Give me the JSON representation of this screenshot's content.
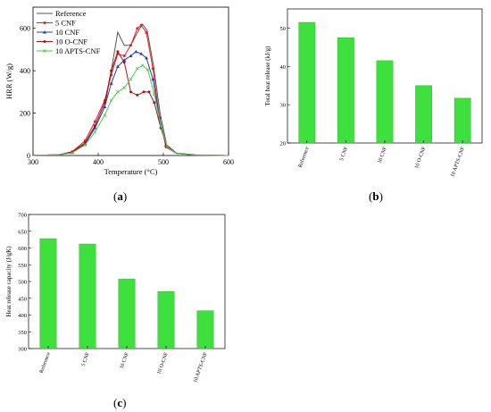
{
  "captions": {
    "a": "a",
    "b": "b",
    "c": "c"
  },
  "chart_data": [
    {
      "id": "a",
      "type": "line",
      "xlabel": "Temperature (°C)",
      "ylabel": "HRR (W/g)",
      "xlim": [
        300,
        600
      ],
      "ylim": [
        0,
        700
      ],
      "xticks": [
        "300",
        "400",
        "500",
        "600"
      ],
      "yticks": [
        "0",
        "200",
        "400",
        "600"
      ],
      "legend_position": "top-left",
      "series": [
        {
          "name": "Reference",
          "color": "#555555",
          "marker": "none",
          "points": [
            [
              300,
              1
            ],
            [
              340,
              3
            ],
            [
              360,
              15
            ],
            [
              380,
              60
            ],
            [
              395,
              130
            ],
            [
              410,
              230
            ],
            [
              420,
              400
            ],
            [
              430,
              582
            ],
            [
              440,
              520
            ],
            [
              450,
              520
            ],
            [
              460,
              580
            ],
            [
              468,
              620
            ],
            [
              475,
              590
            ],
            [
              485,
              420
            ],
            [
              495,
              200
            ],
            [
              505,
              50
            ],
            [
              520,
              12
            ],
            [
              550,
              3
            ],
            [
              600,
              0
            ]
          ]
        },
        {
          "name": "5 CNF",
          "color": "#e8201f",
          "marker": "circle",
          "points": [
            [
              300,
              1
            ],
            [
              340,
              4
            ],
            [
              360,
              18
            ],
            [
              380,
              70
            ],
            [
              395,
              160
            ],
            [
              410,
              260
            ],
            [
              420,
              380
            ],
            [
              430,
              480
            ],
            [
              440,
              470
            ],
            [
              450,
              520
            ],
            [
              460,
              600
            ],
            [
              466,
              615
            ],
            [
              474,
              580
            ],
            [
              484,
              410
            ],
            [
              494,
              180
            ],
            [
              504,
              40
            ],
            [
              520,
              10
            ],
            [
              550,
              2
            ],
            [
              600,
              0
            ]
          ]
        },
        {
          "name": "10 CNF",
          "color": "#2b3aad",
          "marker": "triangle",
          "points": [
            [
              300,
              1
            ],
            [
              340,
              3
            ],
            [
              360,
              15
            ],
            [
              380,
              55
            ],
            [
              395,
              130
            ],
            [
              410,
              230
            ],
            [
              420,
              340
            ],
            [
              430,
              420
            ],
            [
              440,
              450
            ],
            [
              450,
              470
            ],
            [
              458,
              490
            ],
            [
              466,
              480
            ],
            [
              474,
              460
            ],
            [
              484,
              360
            ],
            [
              494,
              180
            ],
            [
              504,
              50
            ],
            [
              520,
              10
            ],
            [
              550,
              2
            ],
            [
              600,
              0
            ]
          ]
        },
        {
          "name": "10 O-CNF",
          "color": "#a0161d",
          "marker": "circle",
          "points": [
            [
              300,
              1
            ],
            [
              340,
              3
            ],
            [
              360,
              16
            ],
            [
              380,
              60
            ],
            [
              395,
              140
            ],
            [
              410,
              250
            ],
            [
              420,
              400
            ],
            [
              430,
              490
            ],
            [
              440,
              440
            ],
            [
              450,
              300
            ],
            [
              460,
              285
            ],
            [
              470,
              300
            ],
            [
              478,
              300
            ],
            [
              486,
              250
            ],
            [
              496,
              130
            ],
            [
              506,
              40
            ],
            [
              520,
              10
            ],
            [
              550,
              2
            ],
            [
              600,
              0
            ]
          ]
        },
        {
          "name": "10 APTS-CNF",
          "color": "#4fc84a",
          "marker": "x",
          "points": [
            [
              300,
              1
            ],
            [
              340,
              3
            ],
            [
              360,
              12
            ],
            [
              380,
              50
            ],
            [
              395,
              110
            ],
            [
              410,
              190
            ],
            [
              420,
              260
            ],
            [
              430,
              300
            ],
            [
              440,
              320
            ],
            [
              450,
              360
            ],
            [
              460,
              410
            ],
            [
              468,
              425
            ],
            [
              476,
              405
            ],
            [
              486,
              290
            ],
            [
              496,
              140
            ],
            [
              506,
              40
            ],
            [
              520,
              10
            ],
            [
              550,
              2
            ],
            [
              600,
              0
            ]
          ]
        }
      ]
    },
    {
      "id": "b",
      "type": "bar",
      "ylabel": "Total heat release (kJ/g)",
      "ylim": [
        20,
        55
      ],
      "yticks": [
        "20",
        "30",
        "40",
        "50"
      ],
      "categories": [
        "Reference",
        "5 CNF",
        "10 CNF",
        "10 O-CNF",
        "10 APTS-CNF"
      ],
      "values": [
        51.5,
        47.5,
        41.5,
        35.0,
        31.7
      ],
      "color": "#3de03d"
    },
    {
      "id": "c",
      "type": "bar",
      "ylabel": "Heat release capacity (J/gK)",
      "ylim": [
        300,
        700
      ],
      "yticks": [
        "300",
        "350",
        "400",
        "450",
        "500",
        "550",
        "600",
        "650",
        "700"
      ],
      "categories": [
        "Reference",
        "5 CNF",
        "10 CNF",
        "10 O-CNF",
        "10 APTS-CNF"
      ],
      "values": [
        628,
        612,
        507,
        470,
        413
      ],
      "color": "#3de03d"
    }
  ]
}
